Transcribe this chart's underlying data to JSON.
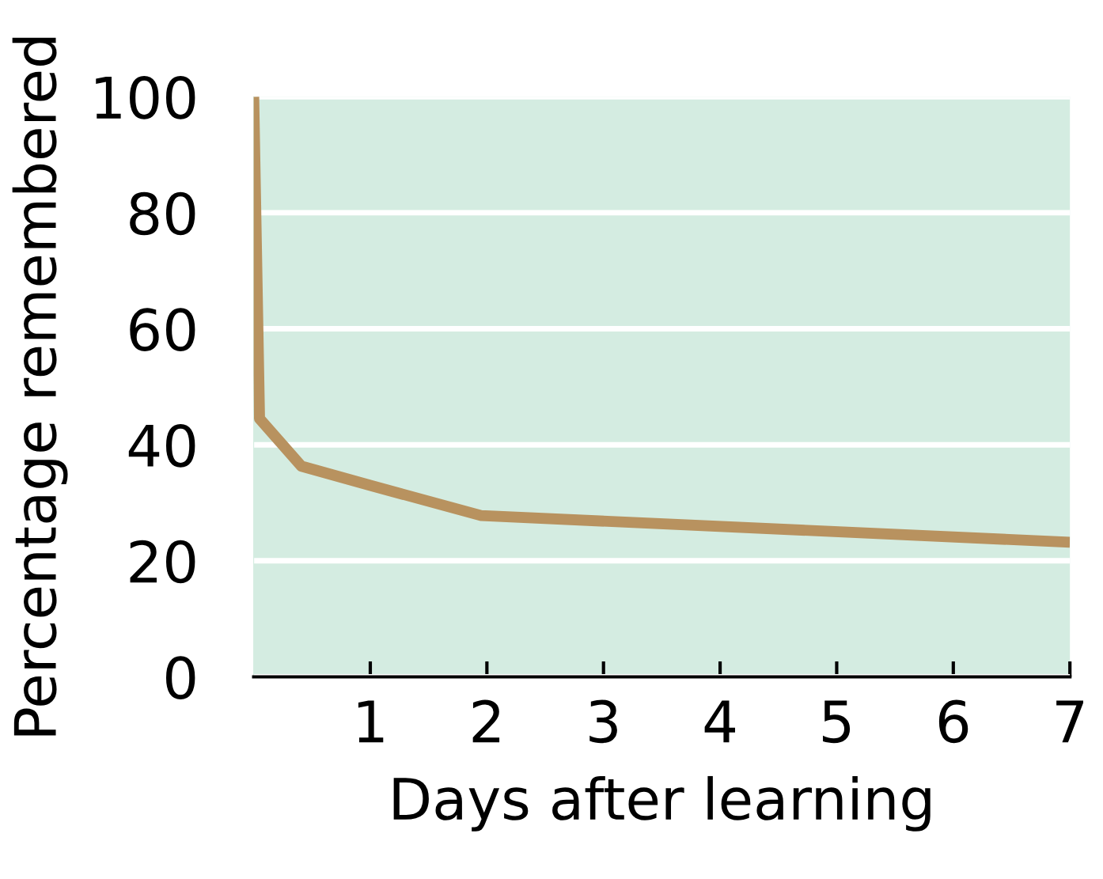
{
  "chart_data": {
    "type": "line",
    "xlabel": "Days after learning",
    "ylabel": "Percentage remembered",
    "x": [
      0,
      0.05,
      0.41,
      1,
      1.95,
      7
    ],
    "series": [
      {
        "color": "#b8925f",
        "values": [
          100,
          44.5,
          36.3,
          33,
          27.8,
          23.2
        ]
      }
    ],
    "xlim": [
      0,
      7
    ],
    "ylim": [
      0,
      100
    ],
    "xticks": [
      1,
      2,
      3,
      4,
      5,
      6,
      7
    ],
    "yticks": [
      0,
      20,
      40,
      60,
      80,
      100
    ],
    "grid": "y",
    "marker": "none",
    "line_style": "solid"
  }
}
